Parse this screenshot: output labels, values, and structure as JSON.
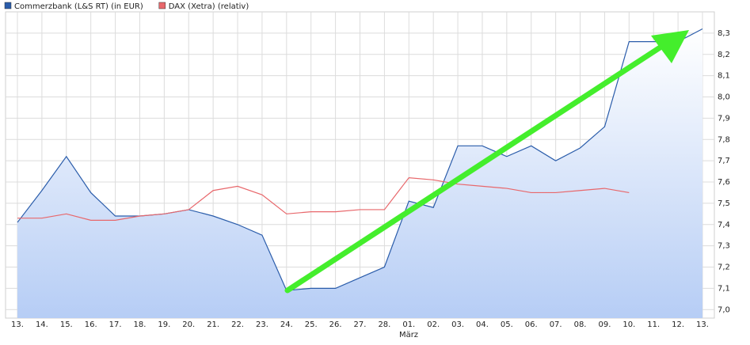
{
  "chart_data": {
    "type": "line",
    "x_label": "März",
    "categories": [
      "13.",
      "14.",
      "15.",
      "16.",
      "17.",
      "18.",
      "19.",
      "20.",
      "21.",
      "22.",
      "23.",
      "24.",
      "25.",
      "26.",
      "27.",
      "28.",
      "01.",
      "02.",
      "03.",
      "04.",
      "05.",
      "06.",
      "07.",
      "08.",
      "09.",
      "10.",
      "11.",
      "12.",
      "13."
    ],
    "series": [
      {
        "name": "Commerzbank (L&S RT) (in EUR)",
        "color": "#2a5caa",
        "area": true,
        "values": [
          7.41,
          7.56,
          7.72,
          7.55,
          7.44,
          7.44,
          7.45,
          7.47,
          7.44,
          7.4,
          7.35,
          7.09,
          7.1,
          7.1,
          7.15,
          7.2,
          7.51,
          7.48,
          7.77,
          7.77,
          7.72,
          7.77,
          7.7,
          7.76,
          7.86,
          8.26,
          8.26,
          8.26,
          8.32
        ]
      },
      {
        "name": "DAX (Xetra) (relativ)",
        "color": "#e8676b",
        "area": false,
        "values": [
          7.43,
          7.43,
          7.45,
          7.42,
          7.42,
          7.44,
          7.45,
          7.47,
          7.56,
          7.58,
          7.54,
          7.45,
          7.46,
          7.46,
          7.47,
          7.47,
          7.62,
          7.61,
          7.59,
          7.58,
          7.57,
          7.55,
          7.55,
          7.56,
          7.57,
          7.55,
          null,
          null,
          null
        ]
      }
    ],
    "ylim": [
      6.96,
      8.4
    ],
    "yticks": [
      {
        "value": 7.0,
        "label": "7,0"
      },
      {
        "value": 7.1,
        "label": "7,1"
      },
      {
        "value": 7.2,
        "label": "7,2"
      },
      {
        "value": 7.3,
        "label": "7,3"
      },
      {
        "value": 7.4,
        "label": "7,4"
      },
      {
        "value": 7.5,
        "label": "7,5"
      },
      {
        "value": 7.6,
        "label": "7,6"
      },
      {
        "value": 7.7,
        "label": "7,7"
      },
      {
        "value": 7.8,
        "label": "7,8"
      },
      {
        "value": 7.9,
        "label": "7,9"
      },
      {
        "value": 8.0,
        "label": "8,0"
      },
      {
        "value": 8.1,
        "label": "8,1"
      },
      {
        "value": 8.2,
        "label": "8,2"
      },
      {
        "value": 8.3,
        "label": "8,3"
      }
    ],
    "grid": true
  }
}
